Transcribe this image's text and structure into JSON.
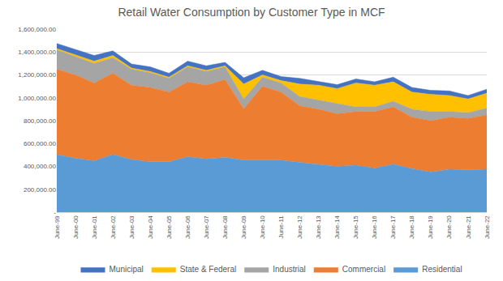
{
  "chart_data": {
    "type": "area",
    "title": "Retail Water Consumption by Customer Type in MCF",
    "stacked": true,
    "grid": true,
    "legend": "bottom",
    "categories": [
      "June-99",
      "June-00",
      "June-01",
      "June-02",
      "June-03",
      "June-04",
      "June-05",
      "June-06",
      "June-07",
      "June-08",
      "June-09",
      "June-10",
      "June-11",
      "June-12",
      "June-13",
      "June-14",
      "June-15",
      "June-16",
      "June-17",
      "June-18",
      "June-19",
      "June-20",
      "June-21",
      "June-22"
    ],
    "series": [
      {
        "name": "Residential",
        "color": "#5b9bd5",
        "values": [
          505000,
          470000,
          450000,
          505000,
          460000,
          440000,
          440000,
          485000,
          465000,
          480000,
          455000,
          455000,
          455000,
          435000,
          420000,
          400000,
          410000,
          385000,
          420000,
          380000,
          350000,
          375000,
          370000,
          375000
        ]
      },
      {
        "name": "Commercial",
        "color": "#ed7d31",
        "values": [
          745000,
          730000,
          680000,
          710000,
          650000,
          650000,
          610000,
          655000,
          645000,
          680000,
          450000,
          645000,
          595000,
          495000,
          480000,
          460000,
          470000,
          495000,
          500000,
          450000,
          450000,
          455000,
          450000,
          475000
        ]
      },
      {
        "name": "Industrial",
        "color": "#a5a5a5",
        "values": [
          170000,
          160000,
          170000,
          135000,
          140000,
          130000,
          120000,
          130000,
          120000,
          110000,
          85000,
          80000,
          80000,
          80000,
          80000,
          90000,
          40000,
          40000,
          50000,
          70000,
          80000,
          50000,
          50000,
          60000
        ]
      },
      {
        "name": "State & Federal",
        "color": "#ffc000",
        "values": [
          10000,
          15000,
          20000,
          20000,
          10000,
          10000,
          10000,
          10000,
          10000,
          10000,
          130000,
          20000,
          20000,
          110000,
          130000,
          130000,
          210000,
          190000,
          170000,
          150000,
          150000,
          140000,
          120000,
          130000
        ]
      },
      {
        "name": "Municipal",
        "color": "#4472c4",
        "values": [
          45000,
          45000,
          50000,
          40000,
          35000,
          40000,
          35000,
          40000,
          40000,
          30000,
          55000,
          40000,
          35000,
          50000,
          35000,
          35000,
          35000,
          30000,
          40000,
          40000,
          35000,
          40000,
          30000,
          35000
        ]
      }
    ],
    "ylim": [
      0,
      1600000
    ],
    "yticks": [
      {
        "value": 0,
        "label": "-"
      },
      {
        "value": 200000,
        "label": "200,000.00"
      },
      {
        "value": 400000,
        "label": "400,000.00"
      },
      {
        "value": 600000,
        "label": "600,000.00"
      },
      {
        "value": 800000,
        "label": "800,000.00"
      },
      {
        "value": 1000000,
        "label": "1,000,000.00"
      },
      {
        "value": 1200000,
        "label": "1,200,000.00"
      },
      {
        "value": 1400000,
        "label": "1,400,000.00"
      },
      {
        "value": 1600000,
        "label": "1,600,000.00"
      }
    ]
  }
}
